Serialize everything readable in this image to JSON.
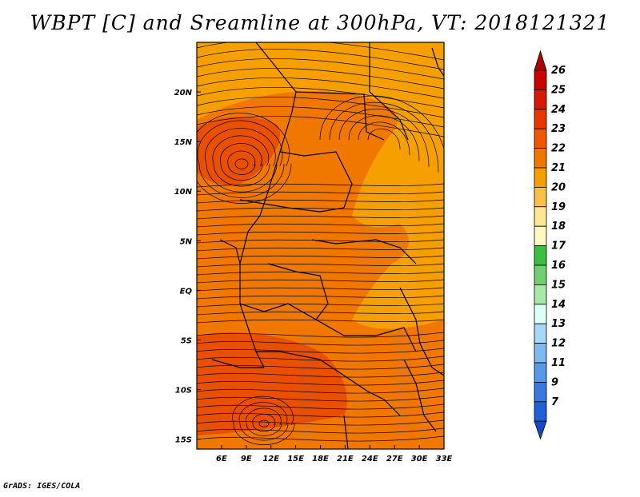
{
  "title": "WBPT [C] and Sreamline at 300hPa, VT: 2018121321",
  "footer": "GrADS: IGES/COLA",
  "map": {
    "lon_range": [
      3,
      33
    ],
    "lat_range": [
      -16,
      25
    ],
    "lon_ticks": [
      "6E",
      "9E",
      "12E",
      "15E",
      "18E",
      "21E",
      "24E",
      "27E",
      "30E",
      "33E"
    ],
    "lat_ticks": [
      "20N",
      "15N",
      "10N",
      "5N",
      "EQ",
      "5S",
      "10S",
      "15S"
    ],
    "field_colors": {
      "c20": "#f8b840",
      "c21": "#f5a000",
      "c22": "#f07800",
      "c23": "#e85000"
    }
  },
  "colorbar": {
    "labels": [
      "26",
      "25",
      "24",
      "23",
      "22",
      "21",
      "20",
      "19",
      "18",
      "17",
      "16",
      "15",
      "14",
      "13",
      "12",
      "11",
      "9",
      "7"
    ],
    "colors": [
      "#c80000",
      "#d81800",
      "#e83800",
      "#f05800",
      "#f07800",
      "#f5a000",
      "#f8c048",
      "#fce890",
      "#fff8c0",
      "#38c040",
      "#70d070",
      "#a8e8a8",
      "#e0fff8",
      "#a8d8f8",
      "#80b8f0",
      "#5898e8",
      "#3878e0",
      "#2060d8"
    ],
    "top_color": "#b00000",
    "bottom_color": "#1848c8"
  }
}
